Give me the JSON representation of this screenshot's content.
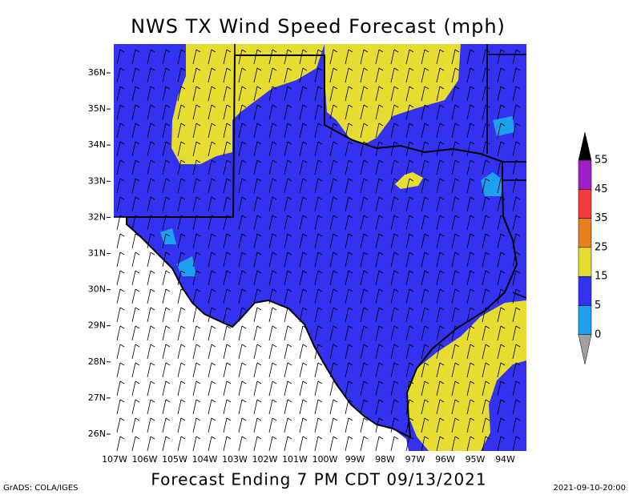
{
  "title": "NWS TX Wind Speed Forecast (mph)",
  "subtitle": "Forecast Ending 7 PM CDT 09/13/2021",
  "credit": "GrADS: COLA/IGES",
  "timestamp": "2021-09-10-20:00",
  "latitude_labels": [
    "36N",
    "35N",
    "34N",
    "33N",
    "32N",
    "31N",
    "30N",
    "29N",
    "28N",
    "27N",
    "26N"
  ],
  "longitude_labels": [
    "107W",
    "106W",
    "105W",
    "104W",
    "103W",
    "102W",
    "101W",
    "100W",
    "99W",
    "98W",
    "97W",
    "96W",
    "95W",
    "94W"
  ],
  "colorbar": {
    "labels": [
      "55",
      "45",
      "35",
      "25",
      "15",
      "5",
      "0"
    ],
    "colors": [
      "#000000",
      "#a01ec8",
      "#f03c3c",
      "#e6821e",
      "#e6dc32",
      "#3232f0",
      "#1ea0f0",
      "#a0a0a0"
    ]
  }
}
